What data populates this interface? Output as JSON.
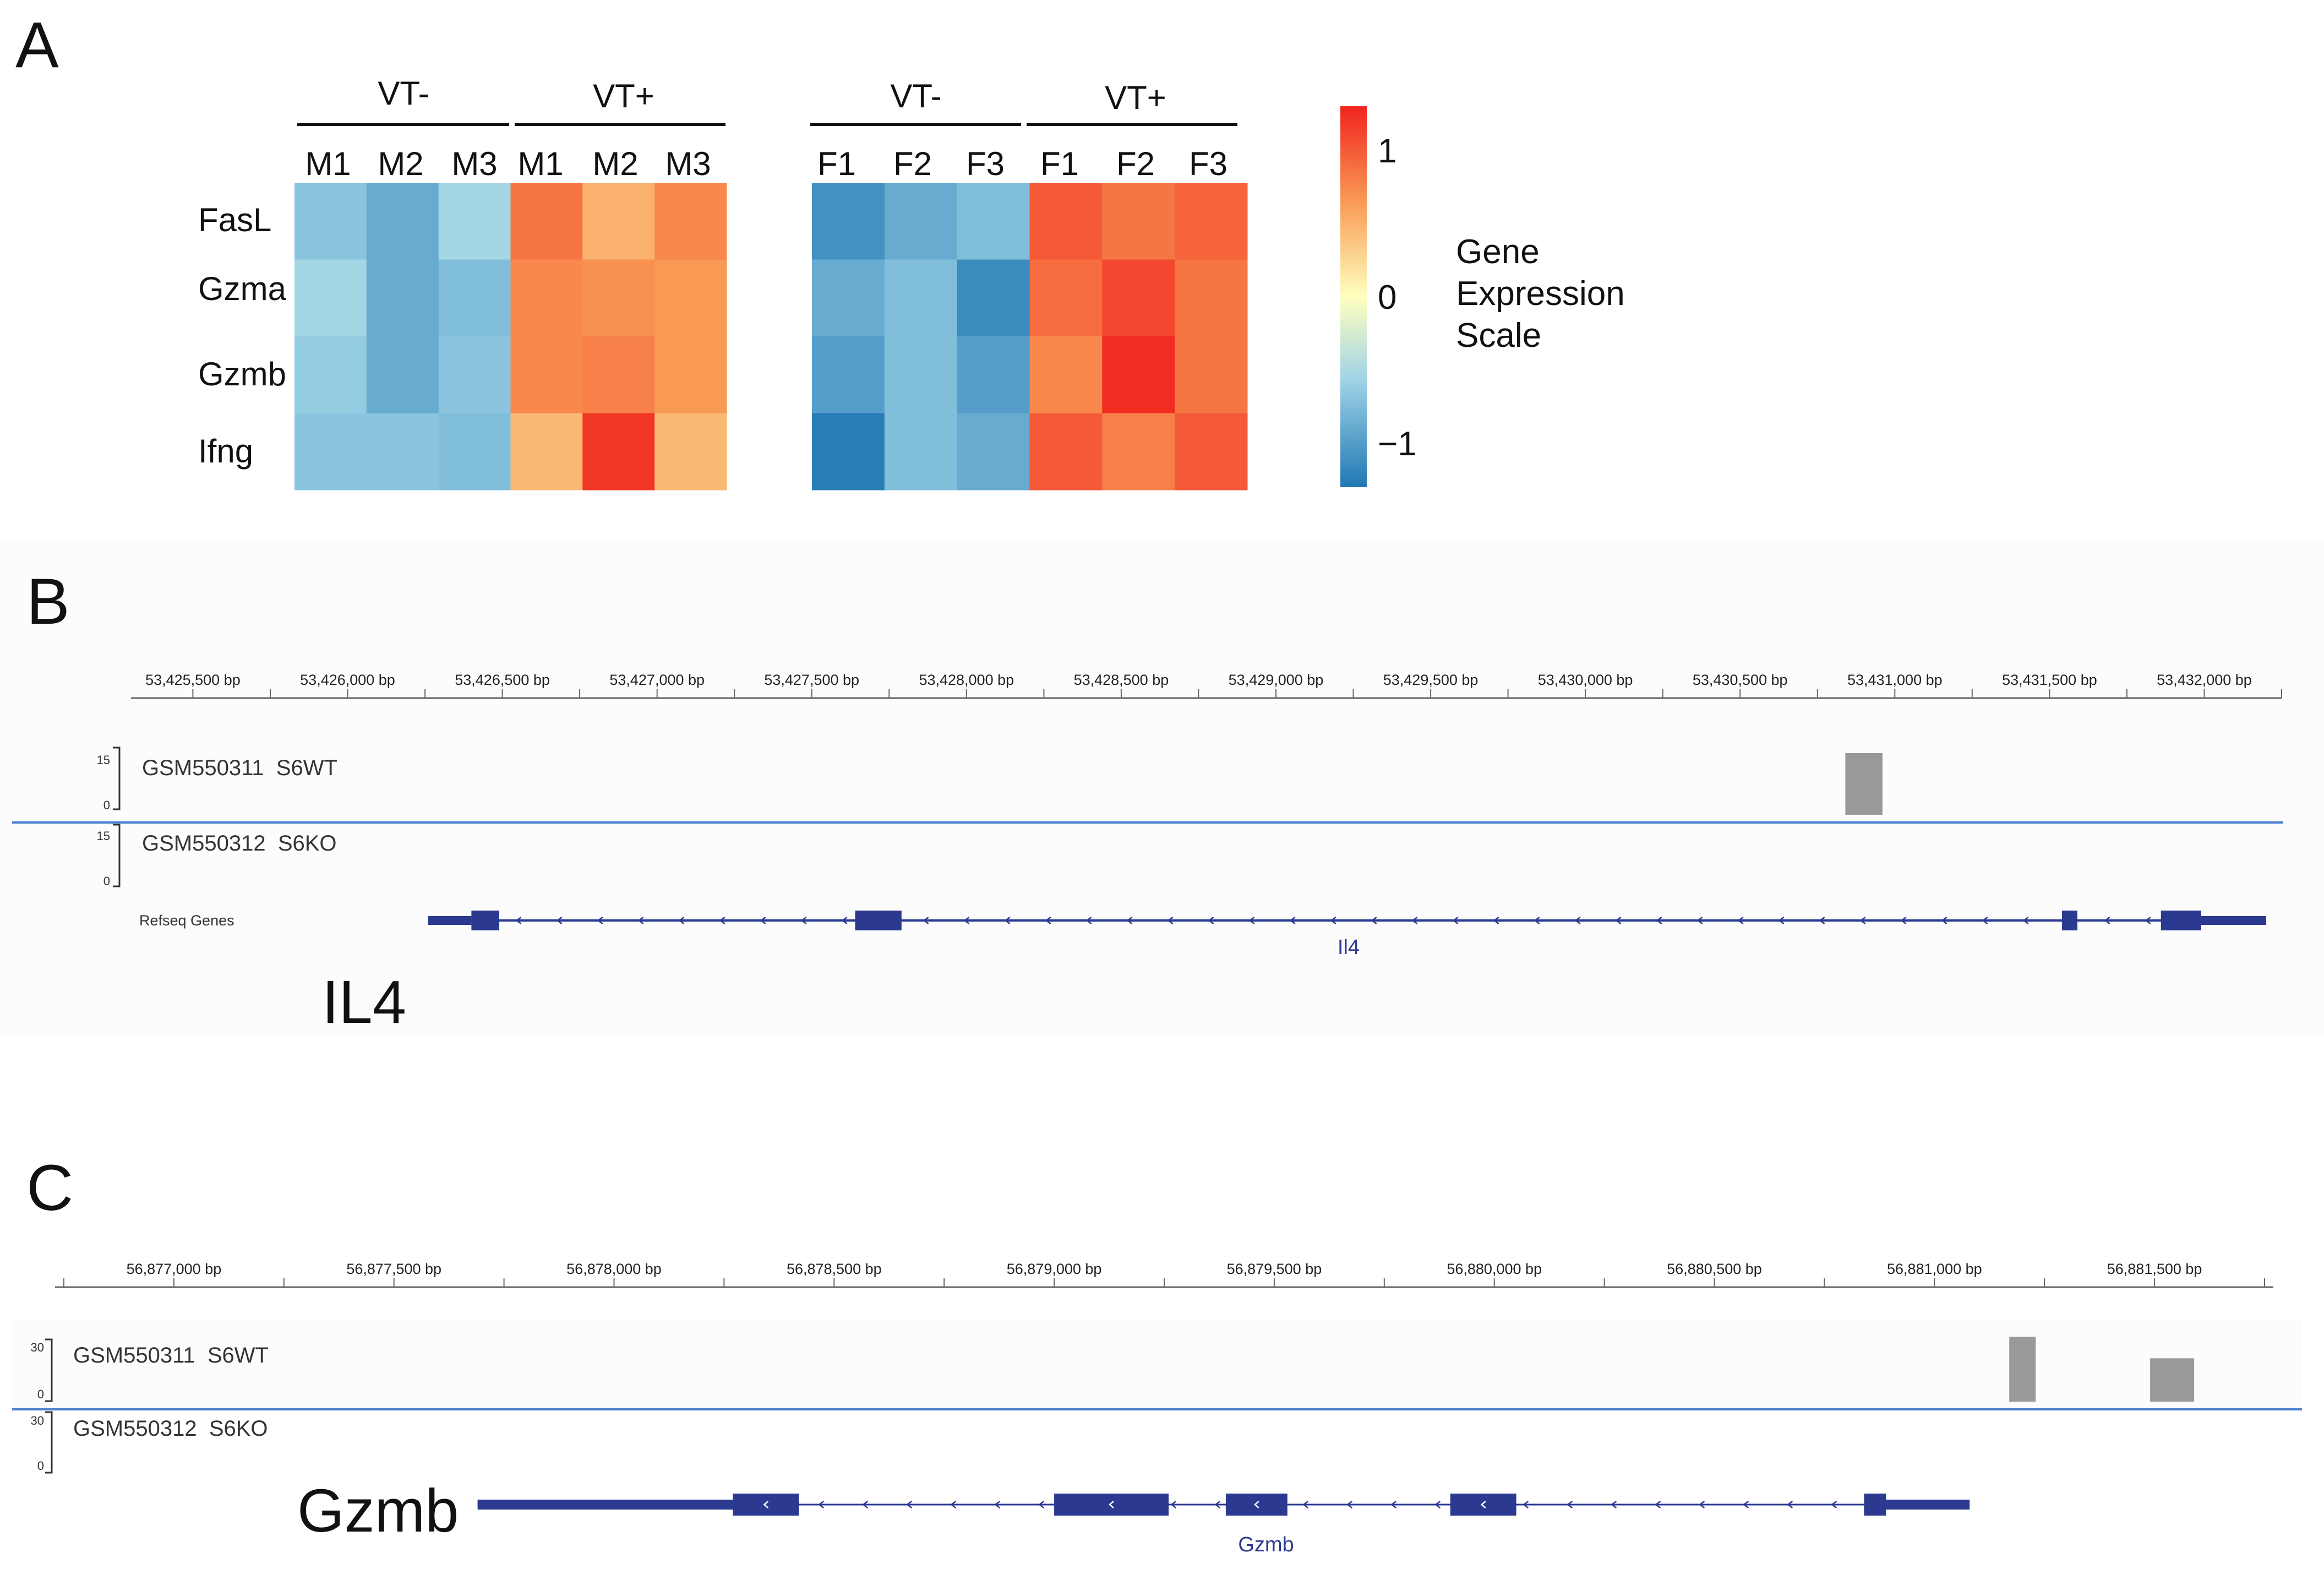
{
  "chart_data": [
    {
      "panel": "A",
      "type": "heatmap",
      "colorbar": {
        "title_lines": [
          "Gene",
          "Expression",
          "Scale"
        ],
        "ticks": [
          {
            "value": 1,
            "label": "1"
          },
          {
            "value": 0,
            "label": "0"
          },
          {
            "value": -1,
            "label": "−1"
          }
        ],
        "range": [
          -1.3,
          1.3
        ]
      },
      "genes": [
        "FasL",
        "Gzma",
        "Gzmb",
        "Ifng"
      ],
      "blocks": [
        {
          "id": "male",
          "groups": [
            {
              "label": "VT-",
              "samples": [
                "M1",
                "M2",
                "M3"
              ]
            },
            {
              "label": "VT+",
              "samples": [
                "M1",
                "M2",
                "M3"
              ]
            }
          ],
          "values": [
            [
              -0.7,
              -0.9,
              -0.55,
              0.85,
              0.5,
              0.75
            ],
            [
              -0.55,
              -0.9,
              -0.75,
              0.75,
              0.7,
              0.65
            ],
            [
              -0.65,
              -0.9,
              -0.7,
              0.75,
              0.8,
              0.65
            ],
            [
              -0.7,
              -0.7,
              -0.75,
              0.45,
              1.2,
              0.45
            ]
          ]
        },
        {
          "id": "female",
          "groups": [
            {
              "label": "VT-",
              "samples": [
                "F1",
                "F2",
                "F3"
              ]
            },
            {
              "label": "VT+",
              "samples": [
                "F1",
                "F2",
                "F3"
              ]
            }
          ],
          "values": [
            [
              -1.1,
              -0.9,
              -0.75,
              1.0,
              0.85,
              0.95
            ],
            [
              -0.9,
              -0.75,
              -1.15,
              0.9,
              1.1,
              0.85
            ],
            [
              -1.0,
              -0.75,
              -1.0,
              0.75,
              1.25,
              0.85
            ],
            [
              -1.25,
              -0.75,
              -0.9,
              1.0,
              0.8,
              1.0
            ]
          ]
        }
      ],
      "colors": {
        "low": "#1f78b4",
        "mid": "#ffffbf",
        "high": "#f0241e"
      }
    },
    {
      "panel": "B",
      "type": "genome-browser",
      "locus": {
        "start": 53425300,
        "end": 53432250
      },
      "ruler_labels": [
        "53,425,500 bp",
        "53,426,000 bp",
        "53,426,500 bp",
        "53,427,000 bp",
        "53,427,500 bp",
        "53,428,000 bp",
        "53,428,500 bp",
        "53,429,000 bp",
        "53,429,500 bp",
        "53,430,000 bp",
        "53,430,500 bp",
        "53,431,000 bp",
        "53,431,500 bp",
        "53,432,000 bp"
      ],
      "ruler_positions": [
        53425500,
        53426000,
        53426500,
        53427000,
        53427500,
        53428000,
        53428500,
        53429000,
        53429500,
        53430000,
        53430500,
        53431000,
        53431500,
        53432000
      ],
      "tracks": [
        {
          "name": "GSM550311  S6WT",
          "range_max": "15",
          "range_min": "0",
          "bars": [
            {
              "start": 53430840,
              "end": 53430960,
              "value": 15
            }
          ]
        },
        {
          "name": "GSM550312  S6KO",
          "range_max": "15",
          "range_min": "0",
          "bars": []
        }
      ],
      "refseq_label": "Refseq Genes",
      "gene": {
        "name": "Il4",
        "start": 53426260,
        "end": 53432200,
        "exons": [
          [
            53426400,
            53426490
          ],
          [
            53427640,
            53427790
          ],
          [
            53431540,
            53431590
          ],
          [
            53431860,
            53431990
          ]
        ]
      },
      "gene_caption": "IL4"
    },
    {
      "panel": "C",
      "type": "genome-browser",
      "locus": {
        "start": 56876730,
        "end": 56881770
      },
      "ruler_labels": [
        "56,877,000 bp",
        "56,877,500 bp",
        "56,878,000 bp",
        "56,878,500 bp",
        "56,879,000 bp",
        "56,879,500 bp",
        "56,880,000 bp",
        "56,880,500 bp",
        "56,881,000 bp",
        "56,881,500 bp"
      ],
      "ruler_positions": [
        56877000,
        56877500,
        56878000,
        56878500,
        56879000,
        56879500,
        56880000,
        56880500,
        56881000,
        56881500
      ],
      "tracks": [
        {
          "name": "GSM550311  S6WT",
          "range_max": "30",
          "range_min": "0",
          "bars": [
            {
              "start": 56881170,
              "end": 56881230,
              "value": 30
            },
            {
              "start": 56881490,
              "end": 56881590,
              "value": 20
            }
          ]
        },
        {
          "name": "GSM550312  S6KO",
          "range_max": "30",
          "range_min": "0",
          "bars": []
        }
      ],
      "gene": {
        "name": "Gzmb",
        "start": 56877690,
        "end": 56881080,
        "thick": [
          [
            56877690,
            56878270
          ],
          [
            56878270,
            56878420
          ],
          [
            56879000,
            56879260
          ],
          [
            56879390,
            56879530
          ],
          [
            56879900,
            56880050
          ],
          [
            56880840,
            56880890
          ],
          [
            56880890,
            56881080
          ]
        ],
        "exons": [
          [
            56878270,
            56878420
          ],
          [
            56879000,
            56879260
          ],
          [
            56879390,
            56879530
          ],
          [
            56879900,
            56880050
          ],
          [
            56880840,
            56880890
          ]
        ]
      },
      "gene_caption": "Gzmb"
    }
  ]
}
